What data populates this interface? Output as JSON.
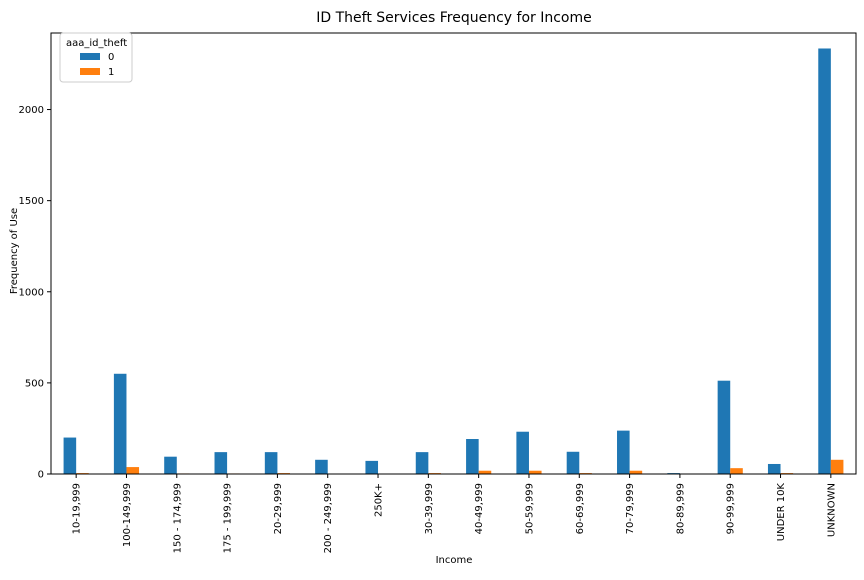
{
  "chart_data": {
    "type": "bar",
    "title": "ID Theft Services Frequency for Income",
    "xlabel": "Income",
    "ylabel": "Frequency of Use",
    "ylim": [
      0,
      2420
    ],
    "yticks": [
      0,
      500,
      1000,
      1500,
      2000
    ],
    "grid": false,
    "legend": {
      "title": "aaa_id_theft",
      "placement": "top-left"
    },
    "categories": [
      "10-19,999",
      "100-149,999",
      "150 - 174,999",
      "175 - 199,999",
      "20-29,999",
      "200 - 249,999",
      "250K+",
      "30-39,999",
      "40-49,999",
      "50-59,999",
      "60-69,999",
      "70-79,999",
      "80-89,999",
      "90-99,999",
      "UNDER 10K",
      "UNKNOWN"
    ],
    "series": [
      {
        "name": "0",
        "color": "#1f77b4",
        "values": [
          200,
          550,
          95,
          120,
          120,
          78,
          72,
          120,
          192,
          232,
          122,
          238,
          5,
          512,
          55,
          2335
        ]
      },
      {
        "name": "1",
        "color": "#ff7f0e",
        "values": [
          5,
          38,
          3,
          3,
          5,
          2,
          2,
          5,
          18,
          18,
          5,
          18,
          0,
          32,
          5,
          78
        ]
      }
    ]
  }
}
